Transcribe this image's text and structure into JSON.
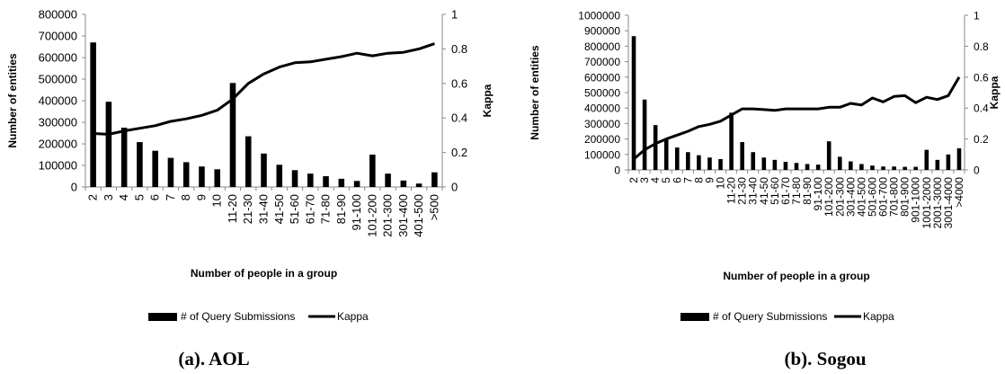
{
  "chart_data": [
    {
      "type": "bar",
      "caption": "(a). AOL",
      "xlabel": "Number of people in a group",
      "ylabel": "Number of entities",
      "y2label": "Kappa",
      "ylim": [
        0,
        800000
      ],
      "yticks": [
        "0",
        "100000",
        "200000",
        "300000",
        "400000",
        "500000",
        "600000",
        "700000",
        "800000"
      ],
      "y2lim": [
        0,
        1
      ],
      "y2ticks": [
        "0",
        "0.2",
        "0.4",
        "0.6",
        "0.8",
        "1"
      ],
      "categories": [
        "2",
        "3",
        "4",
        "5",
        "6",
        "7",
        "8",
        "9",
        "10",
        "11-20",
        "21-30",
        "31-40",
        "41-50",
        "51-60",
        "61-70",
        "71-80",
        "81-90",
        "91-100",
        "101-200",
        "201-300",
        "301-400",
        "401-500",
        ">500"
      ],
      "legend_position": "bottom",
      "series": [
        {
          "name": "# of Query Submissions",
          "type": "bar",
          "axis": "left",
          "color": "#000000",
          "values": [
            670000,
            395000,
            275000,
            208000,
            168000,
            135000,
            115000,
            95000,
            82000,
            482000,
            235000,
            155000,
            103000,
            78000,
            62000,
            50000,
            38000,
            28000,
            150000,
            62000,
            30000,
            16000,
            68000
          ]
        },
        {
          "name": "Kappa",
          "type": "line",
          "axis": "right",
          "color": "#000000",
          "values": [
            0.31,
            0.305,
            0.325,
            0.34,
            0.355,
            0.38,
            0.395,
            0.415,
            0.445,
            0.51,
            0.6,
            0.655,
            0.695,
            0.72,
            0.725,
            0.74,
            0.755,
            0.775,
            0.76,
            0.775,
            0.78,
            0.8,
            0.83
          ]
        }
      ]
    },
    {
      "type": "bar",
      "caption": "(b). Sogou",
      "xlabel": "Number of people in a group",
      "ylabel": "Number of entities",
      "y2label": "Kappa",
      "ylim": [
        0,
        1000000
      ],
      "yticks": [
        "0",
        "100000",
        "200000",
        "300000",
        "400000",
        "500000",
        "600000",
        "700000",
        "800000",
        "900000",
        "1000000"
      ],
      "y2lim": [
        0,
        1
      ],
      "y2ticks": [
        "0",
        "0.2",
        "0.4",
        "0.6",
        "0.8",
        "1"
      ],
      "categories": [
        "2",
        "3",
        "4",
        "5",
        "6",
        "7",
        "8",
        "9",
        "10",
        "11-20",
        "21-30",
        "31-40",
        "41-50",
        "51-60",
        "61-70",
        "71-80",
        "81-90",
        "91-100",
        "101-200",
        "201-300",
        "301-400",
        "401-500",
        "501-600",
        "601-700",
        "701-800",
        "801-900",
        "901-1000",
        "1001-2000",
        "2001-3000",
        "3001-4000",
        ">4000"
      ],
      "legend_position": "bottom",
      "series": [
        {
          "name": "# of Query Submissions",
          "type": "bar",
          "axis": "left",
          "color": "#000000",
          "values": [
            865000,
            455000,
            290000,
            195000,
            145000,
            115000,
            95000,
            80000,
            70000,
            370000,
            180000,
            115000,
            80000,
            65000,
            52000,
            45000,
            38000,
            34000,
            185000,
            85000,
            55000,
            38000,
            28000,
            22000,
            22000,
            20000,
            20000,
            130000,
            65000,
            100000,
            140000
          ]
        },
        {
          "name": "Kappa",
          "type": "line",
          "axis": "right",
          "color": "#000000",
          "values": [
            0.07,
            0.13,
            0.17,
            0.2,
            0.225,
            0.25,
            0.28,
            0.295,
            0.315,
            0.355,
            0.395,
            0.395,
            0.39,
            0.385,
            0.395,
            0.395,
            0.395,
            0.395,
            0.405,
            0.405,
            0.43,
            0.42,
            0.465,
            0.44,
            0.475,
            0.48,
            0.435,
            0.47,
            0.455,
            0.48,
            0.6
          ]
        }
      ]
    }
  ]
}
